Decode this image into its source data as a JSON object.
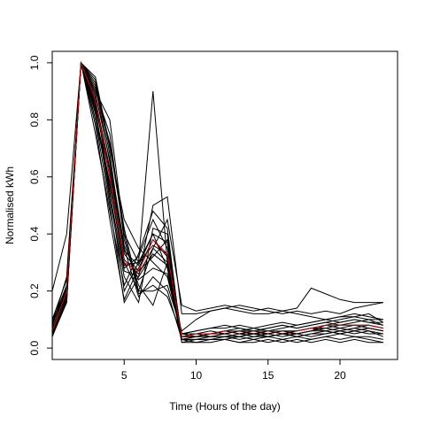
{
  "chart_data": {
    "type": "line",
    "title": "",
    "xlabel": "Time (Hours of the day)",
    "ylabel": "Normalised kWh",
    "xlim": [
      0,
      24
    ],
    "ylim": [
      -0.04,
      1.04
    ],
    "xticks": [
      5,
      10,
      15,
      20
    ],
    "yticks": [
      0.0,
      0.2,
      0.4,
      0.6,
      0.8,
      1.0
    ],
    "xtick_labels": [
      "5",
      "10",
      "15",
      "20"
    ],
    "ytick_labels": [
      "0.0",
      "0.2",
      "0.4",
      "0.6",
      "0.8",
      "1.0"
    ],
    "grid": false,
    "legend": "none",
    "x": [
      0,
      1,
      2,
      3,
      4,
      5,
      6,
      7,
      8,
      9,
      10,
      11,
      12,
      13,
      14,
      15,
      16,
      17,
      18,
      19,
      20,
      21,
      22,
      23
    ],
    "series_color": "#000000",
    "highlight_color": "#cc0000",
    "series": [
      {
        "values": [
          0.2,
          0.4,
          1.0,
          0.9,
          0.8,
          0.4,
          0.3,
          0.9,
          0.3,
          0.05,
          0.04,
          0.05,
          0.05,
          0.06,
          0.05,
          0.06,
          0.05,
          0.06,
          0.07,
          0.06,
          0.07,
          0.08,
          0.07,
          0.06
        ]
      },
      {
        "values": [
          0.1,
          0.2,
          1.0,
          0.85,
          0.6,
          0.3,
          0.2,
          0.35,
          0.45,
          0.15,
          0.13,
          0.14,
          0.15,
          0.14,
          0.13,
          0.14,
          0.13,
          0.14,
          0.21,
          0.19,
          0.17,
          0.16,
          0.16,
          0.16
        ]
      },
      {
        "values": [
          0.05,
          0.18,
          1.0,
          0.8,
          0.5,
          0.16,
          0.25,
          0.5,
          0.53,
          0.12,
          0.12,
          0.13,
          0.14,
          0.13,
          0.12,
          0.12,
          0.13,
          0.12,
          0.11,
          0.1,
          0.11,
          0.11,
          0.1,
          0.1
        ]
      },
      {
        "values": [
          0.08,
          0.25,
          1.0,
          0.95,
          0.7,
          0.45,
          0.35,
          0.3,
          0.25,
          0.04,
          0.05,
          0.05,
          0.06,
          0.05,
          0.06,
          0.05,
          0.06,
          0.05,
          0.06,
          0.07,
          0.06,
          0.07,
          0.08,
          0.07
        ]
      },
      {
        "values": [
          0.06,
          0.2,
          1.0,
          0.92,
          0.65,
          0.35,
          0.18,
          0.25,
          0.2,
          0.03,
          0.03,
          0.04,
          0.04,
          0.03,
          0.04,
          0.04,
          0.05,
          0.04,
          0.05,
          0.06,
          0.05,
          0.06,
          0.05,
          0.05
        ]
      },
      {
        "values": [
          0.04,
          0.17,
          1.0,
          0.88,
          0.55,
          0.2,
          0.3,
          0.4,
          0.28,
          0.02,
          0.03,
          0.03,
          0.04,
          0.04,
          0.05,
          0.05,
          0.04,
          0.05,
          0.06,
          0.08,
          0.09,
          0.1,
          0.09,
          0.08
        ]
      },
      {
        "values": [
          0.09,
          0.22,
          1.0,
          0.9,
          0.75,
          0.38,
          0.22,
          0.15,
          0.3,
          0.05,
          0.06,
          0.07,
          0.08,
          0.07,
          0.06,
          0.07,
          0.08,
          0.07,
          0.08,
          0.09,
          0.1,
          0.11,
          0.12,
          0.09
        ]
      },
      {
        "values": [
          0.07,
          0.19,
          1.0,
          0.82,
          0.58,
          0.28,
          0.32,
          0.45,
          0.35,
          0.04,
          0.04,
          0.05,
          0.05,
          0.06,
          0.07,
          0.06,
          0.05,
          0.06,
          0.07,
          0.08,
          0.07,
          0.06,
          0.07,
          0.06
        ]
      },
      {
        "values": [
          0.05,
          0.16,
          1.0,
          0.78,
          0.45,
          0.17,
          0.28,
          0.38,
          0.32,
          0.03,
          0.02,
          0.03,
          0.03,
          0.02,
          0.03,
          0.02,
          0.03,
          0.02,
          0.03,
          0.04,
          0.05,
          0.04,
          0.03,
          0.02
        ]
      },
      {
        "values": [
          0.06,
          0.21,
          1.0,
          0.93,
          0.68,
          0.33,
          0.27,
          0.32,
          0.38,
          0.04,
          0.05,
          0.04,
          0.05,
          0.04,
          0.05,
          0.04,
          0.05,
          0.04,
          0.05,
          0.05,
          0.06,
          0.07,
          0.06,
          0.05
        ]
      },
      {
        "values": [
          0.05,
          0.19,
          1.0,
          0.86,
          0.62,
          0.31,
          0.26,
          0.35,
          0.3,
          0.04,
          0.04,
          0.05,
          0.05,
          0.06,
          0.06,
          0.05,
          0.06,
          0.06,
          0.07,
          0.07,
          0.08,
          0.08,
          0.08,
          0.07
        ]
      },
      {
        "values": [
          0.1,
          0.24,
          1.0,
          0.91,
          0.72,
          0.42,
          0.2,
          0.2,
          0.22,
          0.06,
          0.1,
          0.13,
          0.14,
          0.15,
          0.14,
          0.13,
          0.12,
          0.13,
          0.12,
          0.13,
          0.12,
          0.14,
          0.15,
          0.16
        ]
      },
      {
        "values": [
          0.04,
          0.17,
          1.0,
          0.84,
          0.52,
          0.25,
          0.16,
          0.42,
          0.4,
          0.03,
          0.04,
          0.05,
          0.06,
          0.05,
          0.04,
          0.05,
          0.06,
          0.05,
          0.04,
          0.05,
          0.06,
          0.05,
          0.06,
          0.04
        ]
      },
      {
        "values": [
          0.07,
          0.2,
          1.0,
          0.89,
          0.66,
          0.36,
          0.24,
          0.28,
          0.26,
          0.05,
          0.05,
          0.06,
          0.05,
          0.06,
          0.05,
          0.06,
          0.07,
          0.08,
          0.09,
          0.1,
          0.11,
          0.12,
          0.11,
          0.1
        ]
      },
      {
        "values": [
          0.05,
          0.18,
          1.0,
          0.8,
          0.57,
          0.29,
          0.3,
          0.36,
          0.33,
          0.03,
          0.03,
          0.03,
          0.03,
          0.04,
          0.03,
          0.04,
          0.03,
          0.04,
          0.03,
          0.04,
          0.03,
          0.04,
          0.04,
          0.03
        ]
      },
      {
        "values": [
          0.04,
          0.16,
          1.0,
          0.75,
          0.48,
          0.22,
          0.33,
          0.48,
          0.42,
          0.02,
          0.02,
          0.02,
          0.03,
          0.02,
          0.02,
          0.03,
          0.02,
          0.03,
          0.02,
          0.03,
          0.02,
          0.03,
          0.02,
          0.02
        ]
      },
      {
        "values": [
          0.06,
          0.22,
          1.0,
          0.94,
          0.71,
          0.4,
          0.19,
          0.22,
          0.18,
          0.05,
          0.06,
          0.07,
          0.07,
          0.08,
          0.07,
          0.08,
          0.09,
          0.08,
          0.09,
          0.1,
          0.09,
          0.1,
          0.09,
          0.09
        ]
      },
      {
        "values": [
          0.08,
          0.21,
          1.0,
          0.87,
          0.63,
          0.34,
          0.29,
          0.4,
          0.37,
          0.04,
          0.05,
          0.05,
          0.06,
          0.07,
          0.06,
          0.07,
          0.08,
          0.07,
          0.08,
          0.09,
          0.08,
          0.09,
          0.1,
          0.08
        ]
      },
      {
        "values": [
          0.05,
          0.17,
          1.0,
          0.83,
          0.54,
          0.27,
          0.25,
          0.33,
          0.29,
          0.03,
          0.04,
          0.04,
          0.04,
          0.05,
          0.05,
          0.04,
          0.05,
          0.05,
          0.06,
          0.06,
          0.05,
          0.06,
          0.07,
          0.06
        ]
      }
    ],
    "highlight_series": {
      "values": [
        0.06,
        0.2,
        1.0,
        0.87,
        0.6,
        0.3,
        0.27,
        0.38,
        0.33,
        0.04,
        0.05,
        0.05,
        0.06,
        0.06,
        0.06,
        0.06,
        0.06,
        0.06,
        0.07,
        0.08,
        0.08,
        0.08,
        0.08,
        0.07
      ]
    }
  }
}
